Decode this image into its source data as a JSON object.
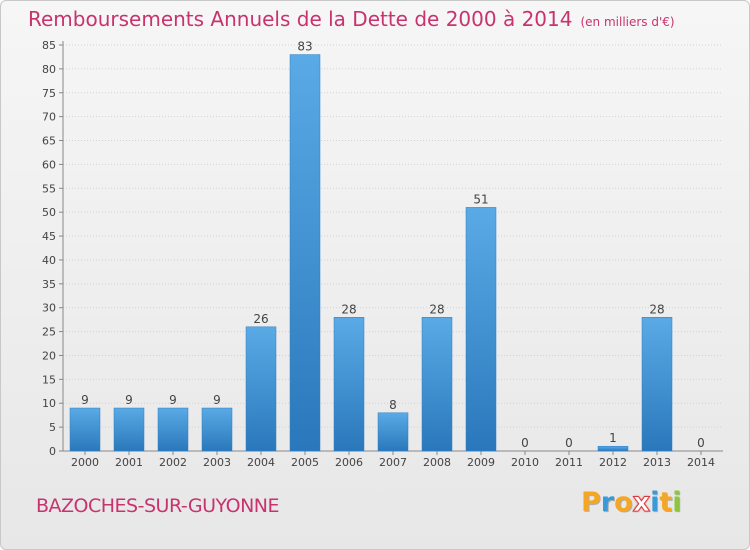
{
  "title": "Remboursements Annuels de la Dette de 2000 à 2014",
  "unit": "(en milliers d'€)",
  "town": "BAZOCHES-SUR-GUYONNE",
  "logo": {
    "letters": [
      "P",
      "r",
      "o",
      "x",
      "i",
      "t",
      "i"
    ],
    "colors": [
      "#f5a623",
      "#3a9ad9",
      "#f5a623",
      "#ffffff",
      "#3a9ad9",
      "#f5a623",
      "#8cc63f"
    ]
  },
  "chart_data": {
    "type": "bar",
    "categories": [
      "2000",
      "2001",
      "2002",
      "2003",
      "2004",
      "2005",
      "2006",
      "2007",
      "2008",
      "2009",
      "2010",
      "2011",
      "2012",
      "2013",
      "2014"
    ],
    "values": [
      9,
      9,
      9,
      9,
      26,
      83,
      28,
      8,
      28,
      51,
      0,
      0,
      1,
      28,
      0
    ],
    "ylim": [
      0,
      85
    ],
    "yticks": [
      0,
      5,
      10,
      15,
      20,
      25,
      30,
      35,
      40,
      45,
      50,
      55,
      60,
      65,
      70,
      75,
      80,
      85
    ],
    "grid": true,
    "bar_color": "#3a8fd4",
    "title_color": "#c8336e"
  }
}
